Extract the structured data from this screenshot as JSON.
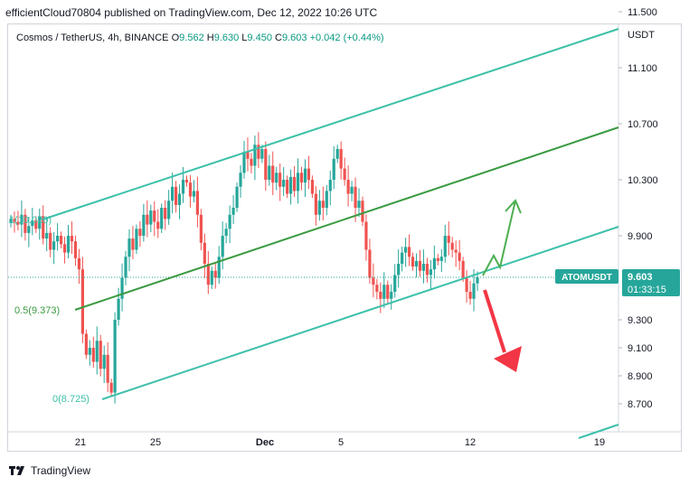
{
  "publish_line": "efficientCloud70804 published on TradingView.com, Dec 12, 2022 10:26 UTC",
  "legend": {
    "symbol": "Cosmos / TetherUS, 4h, BINANCE",
    "o_label": "O",
    "o_value": "9.562",
    "h_label": "H",
    "h_value": "9.630",
    "l_label": "L",
    "l_value": "9.450",
    "c_label": "C",
    "c_value": "9.603",
    "change": "+0.042 (+0.44%)"
  },
  "currency": "USDT",
  "footer": {
    "brand": "TradingView"
  },
  "colors": {
    "up": "#26a69a",
    "down": "#ef5350",
    "channel_outer": "#3cc0a9",
    "channel_mid": "#3a9a40",
    "arrow_up": "#4caf50",
    "arrow_down": "#f23645",
    "label_bg": "#26a69a"
  },
  "chart_data": {
    "type": "candlestick",
    "symbol": "ATOMUSDT",
    "timeframe": "4h",
    "price_label": "9.603",
    "countdown": "01:33:15",
    "y_ticks": [
      "11.500",
      "11.100",
      "10.700",
      "10.300",
      "9.900",
      "9.300",
      "9.100",
      "8.900",
      "8.700"
    ],
    "y_tick_values": [
      11.5,
      11.1,
      10.7,
      10.3,
      9.9,
      9.3,
      9.1,
      8.9,
      8.7
    ],
    "x_ticks": [
      "21",
      "25",
      "Dec",
      "5",
      "12",
      "19"
    ],
    "ylim": [
      8.6,
      11.6
    ],
    "fib_labels": [
      {
        "text": "0.5(9.373)",
        "value": 9.373
      },
      {
        "text": "0(8.725)",
        "value": 8.725
      },
      {
        "text": "1(10.020)",
        "value": 10.02
      }
    ],
    "candles_close": [
      10.02,
      10.0,
      9.98,
      10.05,
      9.92,
      9.97,
      10.01,
      9.95,
      10.04,
      9.88,
      9.92,
      9.8,
      9.86,
      9.9,
      9.84,
      9.78,
      9.9,
      9.86,
      9.74,
      9.66,
      9.2,
      9.05,
      9.1,
      9.0,
      9.15,
      8.95,
      9.05,
      8.85,
      8.78,
      9.3,
      9.45,
      9.6,
      9.75,
      9.88,
      9.8,
      9.95,
      9.9,
      10.05,
      9.98,
      10.08,
      10.0,
      9.95,
      10.1,
      10.02,
      10.15,
      10.25,
      10.12,
      10.2,
      10.3,
      10.28,
      10.18,
      10.22,
      10.05,
      9.85,
      9.7,
      9.55,
      9.65,
      9.6,
      9.75,
      9.9,
      9.95,
      10.05,
      10.1,
      10.25,
      10.35,
      10.5,
      10.45,
      10.4,
      10.55,
      10.45,
      10.52,
      10.3,
      10.4,
      10.28,
      10.35,
      10.25,
      10.3,
      10.2,
      10.32,
      10.22,
      10.35,
      10.28,
      10.38,
      10.3,
      10.2,
      10.05,
      10.15,
      10.1,
      10.22,
      10.3,
      10.45,
      10.52,
      10.38,
      10.3,
      10.2,
      10.25,
      10.1,
      10.15,
      10.0,
      9.8,
      9.6,
      9.55,
      9.5,
      9.45,
      9.55,
      9.45,
      9.5,
      9.62,
      9.7,
      9.78,
      9.82,
      9.75,
      9.68,
      9.72,
      9.65,
      9.7,
      9.62,
      9.66,
      9.74,
      9.72,
      9.75,
      9.9,
      9.85,
      9.8,
      9.78,
      9.72,
      9.6,
      9.5,
      9.45,
      9.56,
      9.603
    ],
    "annotations": [
      "ascending channel",
      "up arrow",
      "down arrow"
    ]
  }
}
